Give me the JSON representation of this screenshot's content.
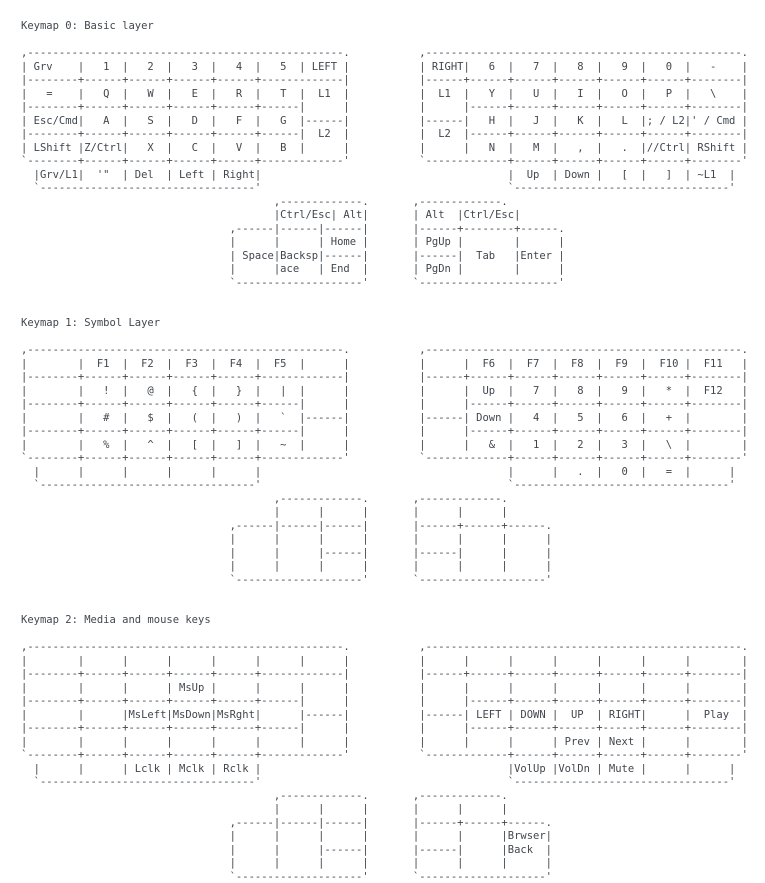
{
  "page": {
    "background": "#ffffff",
    "text_color": "#41474e"
  },
  "sections": [
    {
      "title": "Keymap 0: Basic layer",
      "art": [
        ",--------------------------------------------------.           ,--------------------------------------------------.",
        "| Grv    |   1  |   2  |   3  |   4  |   5  | LEFT |           | RIGHT|   6  |   7  |   8  |   9  |   0  |   -    |",
        "|--------+------+------+------+------+-------------|           |------+------+------+------+------+------+--------|",
        "|   =    |   Q  |   W  |   E  |   R  |   T  |  L1  |           |  L1  |   Y  |   U  |   I  |   O  |   P  |   \\    |",
        "|--------+------+------+------+------+------|      |           |      |------+------+------+------+------+--------|",
        "| Esc/Cmd|   A  |   S  |   D  |   F  |   G  |------|           |------|   H  |   J  |   K  |   L  |; / L2|' / Cmd |",
        "|--------+------+------+------+------+------|  L2  |           |  L2  |------+------+------+------+------+--------|",
        "| LShift |Z/Ctrl|   X  |   C  |   V  |   B  |      |           |      |   N  |   M  |   ,  |   .  |//Ctrl| RShift |",
        "`--------+------+------+------+------+-------------'           `-------------+------+------+------+------+--------'",
        "  |Grv/L1|  '\"  | Del  | Left | Right|                                       |  Up  | Down |   [  |   ]  | ~L1  |",
        "  `----------------------------------'                                       `----------------------------------'",
        "                                        ,-------------.       ,-------------.",
        "                                        |Ctrl/Esc| Alt|       | Alt  |Ctrl/Esc|",
        "                                 ,------|------|------|       |------+--------+------.",
        "                                 |      |      | Home |       | PgUp |        |      |",
        "                                 | Space|Backsp|------|       |------|  Tab   |Enter |",
        "                                 |      |ace   | End  |       | PgDn |        |      |",
        "                                 `--------------------'       `----------------------'"
      ]
    },
    {
      "title": "Keymap 1: Symbol Layer",
      "art": [
        ",--------------------------------------------------.           ,--------------------------------------------------.",
        "|        |  F1  |  F2  |  F3  |  F4  |  F5  |      |           |      |  F6  |  F7  |  F8  |  F9  |  F10 |  F11   |",
        "|--------+------+------+------+------+-------------|           |------+------+------+------+------+------+--------|",
        "|        |   !  |   @  |   {  |   }  |   |  |      |           |      |  Up  |   7  |   8  |   9  |   *  |  F12   |",
        "|--------+------+------+------+------+------|      |           |      |------+------+------+------+------+--------|",
        "|        |   #  |   $  |   (  |   )  |   `  |------|           |------| Down |   4  |   5  |   6  |   +  |        |",
        "|--------+------+------+------+------+------|      |           |      |------+------+------+------+------+--------|",
        "|        |   %  |   ^  |   [  |   ]  |   ~  |      |           |      |   &  |   1  |   2  |   3  |   \\  |        |",
        "`--------+------+------+------+------+-------------'           `-------------+------+------+------+------+--------'",
        "  |      |      |      |      |      |                                       |      |   .  |   0  |   =  |      |",
        "  `----------------------------------'                                       `----------------------------------'",
        "                                        ,-------------.       ,-------------.",
        "                                        |      |      |       |      |      |",
        "                                 ,------|------|------|       |------+------+------.",
        "                                 |      |      |      |       |      |      |      |",
        "                                 |      |      |------|       |------|      |      |",
        "                                 |      |      |      |       |      |      |      |",
        "                                 `--------------------'       `--------------------'"
      ]
    },
    {
      "title": "Keymap 2: Media and mouse keys",
      "art": [
        ",--------------------------------------------------.           ,--------------------------------------------------.",
        "|        |      |      |      |      |      |      |           |      |      |      |      |      |      |        |",
        "|--------+------+------+------+------+-------------|           |------+------+------+------+------+------+--------|",
        "|        |      |      | MsUp |      |      |      |           |      |      |      |      |      |      |        |",
        "|--------+------+------+------+------+------|      |           |      |------+------+------+------+------+--------|",
        "|        |      |MsLeft|MsDown|MsRght|      |------|           |------| LEFT | DOWN |  UP  | RIGHT|      |  Play  |",
        "|--------+------+------+------+------+------|      |           |      |------+------+------+------+------+--------|",
        "|        |      |      |      |      |      |      |           |      |      |      | Prev | Next |      |        |",
        "`--------+------+------+------+------+-------------'           `-------------+------+------+------+------+--------'",
        "  |      |      | Lclk | Mclk | Rclk |                                       |VolUp |VolDn | Mute |      |      |",
        "  `----------------------------------'                                       `----------------------------------'",
        "                                        ,-------------.       ,-------------.",
        "                                        |      |      |       |      |      |",
        "                                 ,------|------|------|       |------+------+------.",
        "                                 |      |      |      |       |      |      |Brwser|",
        "                                 |      |      |------|       |------|      |Back  |",
        "                                 |      |      |      |       |      |      |      |",
        "                                 `--------------------'       `--------------------'"
      ]
    }
  ]
}
